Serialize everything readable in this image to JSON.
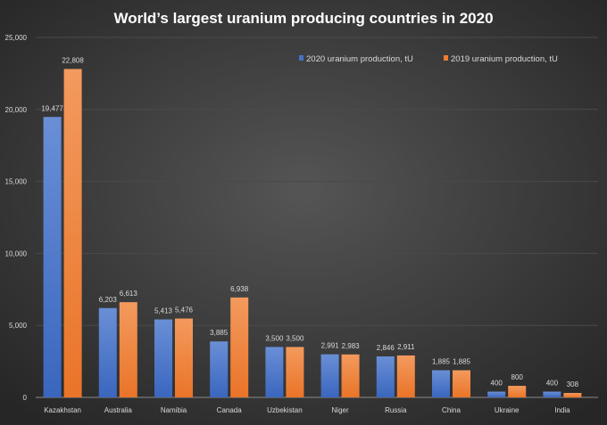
{
  "chart_data": {
    "type": "bar",
    "title": "World’s largest uranium producing countries in 2020",
    "xlabel": "",
    "ylabel": "",
    "ylim": [
      0,
      25000
    ],
    "yticks": [
      0,
      5000,
      10000,
      15000,
      20000,
      25000
    ],
    "ytick_labels": [
      "0",
      "5,000",
      "10,000",
      "15,000",
      "20,000",
      "25,000"
    ],
    "grid": true,
    "legend_position": "top-right",
    "categories": [
      "Kazakhstan",
      "Australia",
      "Namibia",
      "Canada",
      "Uzbekistan",
      "Niger",
      "Russia",
      "China",
      "Ukraine",
      "India"
    ],
    "series": [
      {
        "name": "2020 uranium production, tU",
        "color": "#4472c4",
        "values": [
          19477,
          6203,
          5413,
          3885,
          3500,
          2991,
          2846,
          1885,
          400,
          400
        ],
        "labels": [
          "19,477",
          "6,203",
          "5,413",
          "3,885",
          "3,500",
          "2,991",
          "2,846",
          "1,885",
          "400",
          "400"
        ]
      },
      {
        "name": "2019 uranium production, tU",
        "color": "#ed7d31",
        "values": [
          22808,
          6613,
          5476,
          6938,
          3500,
          2983,
          2911,
          1885,
          800,
          308
        ],
        "labels": [
          "22,808",
          "6,613",
          "5,476",
          "6,938",
          "3,500",
          "2,983",
          "2,911",
          "1,885",
          "800",
          "308"
        ]
      }
    ],
    "colors": {
      "background": "#333333",
      "grid": "#4a4a4a",
      "text": "#d9d9d9",
      "title": "#ffffff"
    }
  }
}
